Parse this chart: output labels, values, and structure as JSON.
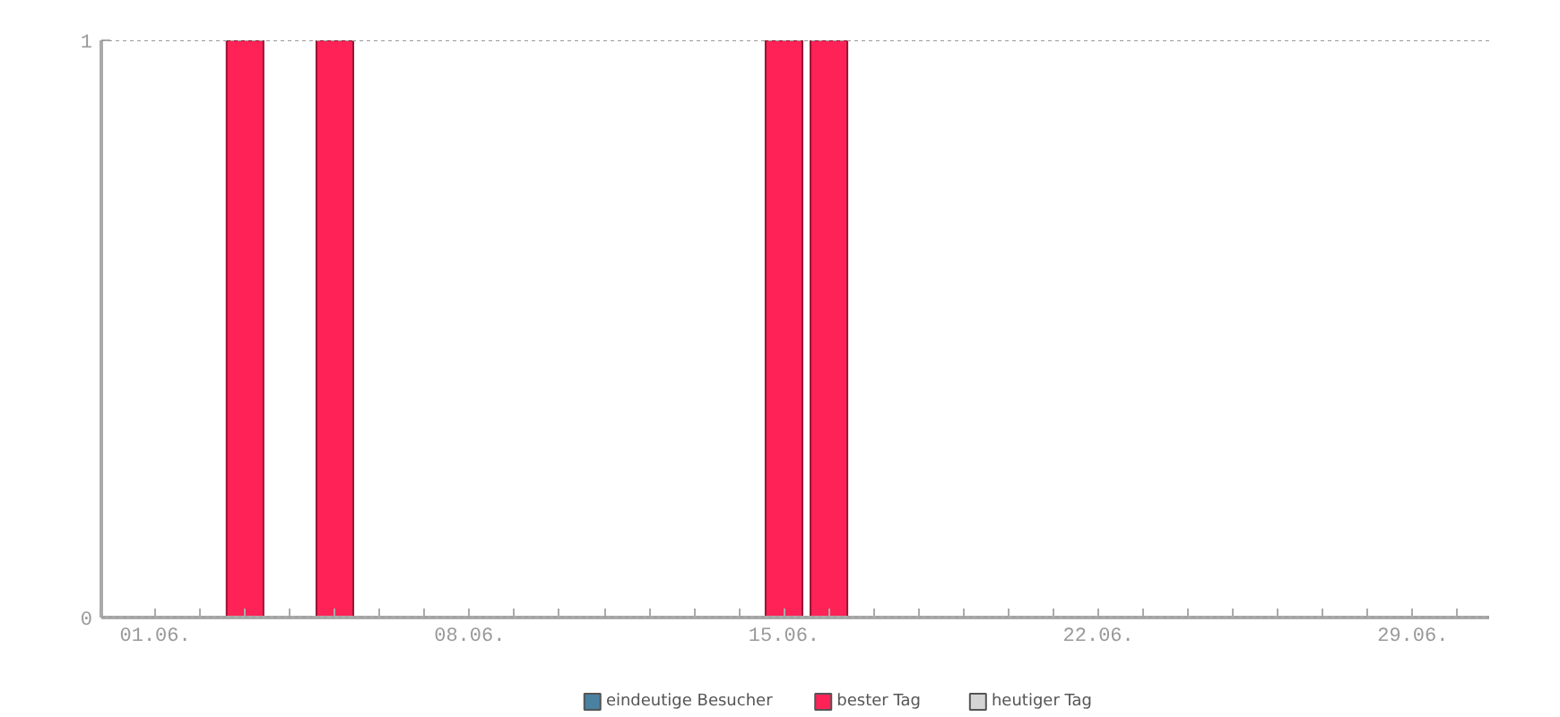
{
  "chart_data": {
    "type": "bar",
    "categories": [
      "01.06.",
      null,
      null,
      null,
      null,
      null,
      null,
      "08.06.",
      null,
      null,
      null,
      null,
      null,
      null,
      "15.06.",
      null,
      null,
      null,
      null,
      null,
      null,
      "22.06.",
      null,
      null,
      null,
      null,
      null,
      null,
      "29.06.",
      null
    ],
    "series": [
      {
        "name": "eindeutige Besucher",
        "color": "#4a80a0",
        "values": [
          0,
          0,
          null,
          0,
          null,
          0,
          0,
          0,
          0,
          0,
          0,
          0,
          0,
          0,
          null,
          null,
          0,
          0,
          0,
          0,
          0,
          0,
          0,
          0,
          0,
          0,
          0,
          0,
          0,
          0
        ]
      },
      {
        "name": "bester Tag",
        "color": "#ff2257",
        "values": [
          null,
          null,
          1,
          null,
          1,
          null,
          null,
          null,
          null,
          null,
          null,
          null,
          null,
          null,
          1,
          1,
          null,
          null,
          null,
          null,
          null,
          null,
          null,
          null,
          null,
          null,
          null,
          null,
          null,
          null
        ]
      },
      {
        "name": "heutiger Tag",
        "color": "#d4d4d4",
        "values": [
          null,
          null,
          null,
          null,
          null,
          null,
          null,
          null,
          null,
          null,
          null,
          null,
          null,
          null,
          null,
          null,
          null,
          null,
          null,
          null,
          null,
          null,
          null,
          null,
          null,
          null,
          null,
          null,
          null,
          null
        ]
      }
    ],
    "ylim": [
      0,
      1
    ],
    "yticks": [
      0,
      1
    ],
    "grid": "y",
    "legend": "bottom"
  }
}
